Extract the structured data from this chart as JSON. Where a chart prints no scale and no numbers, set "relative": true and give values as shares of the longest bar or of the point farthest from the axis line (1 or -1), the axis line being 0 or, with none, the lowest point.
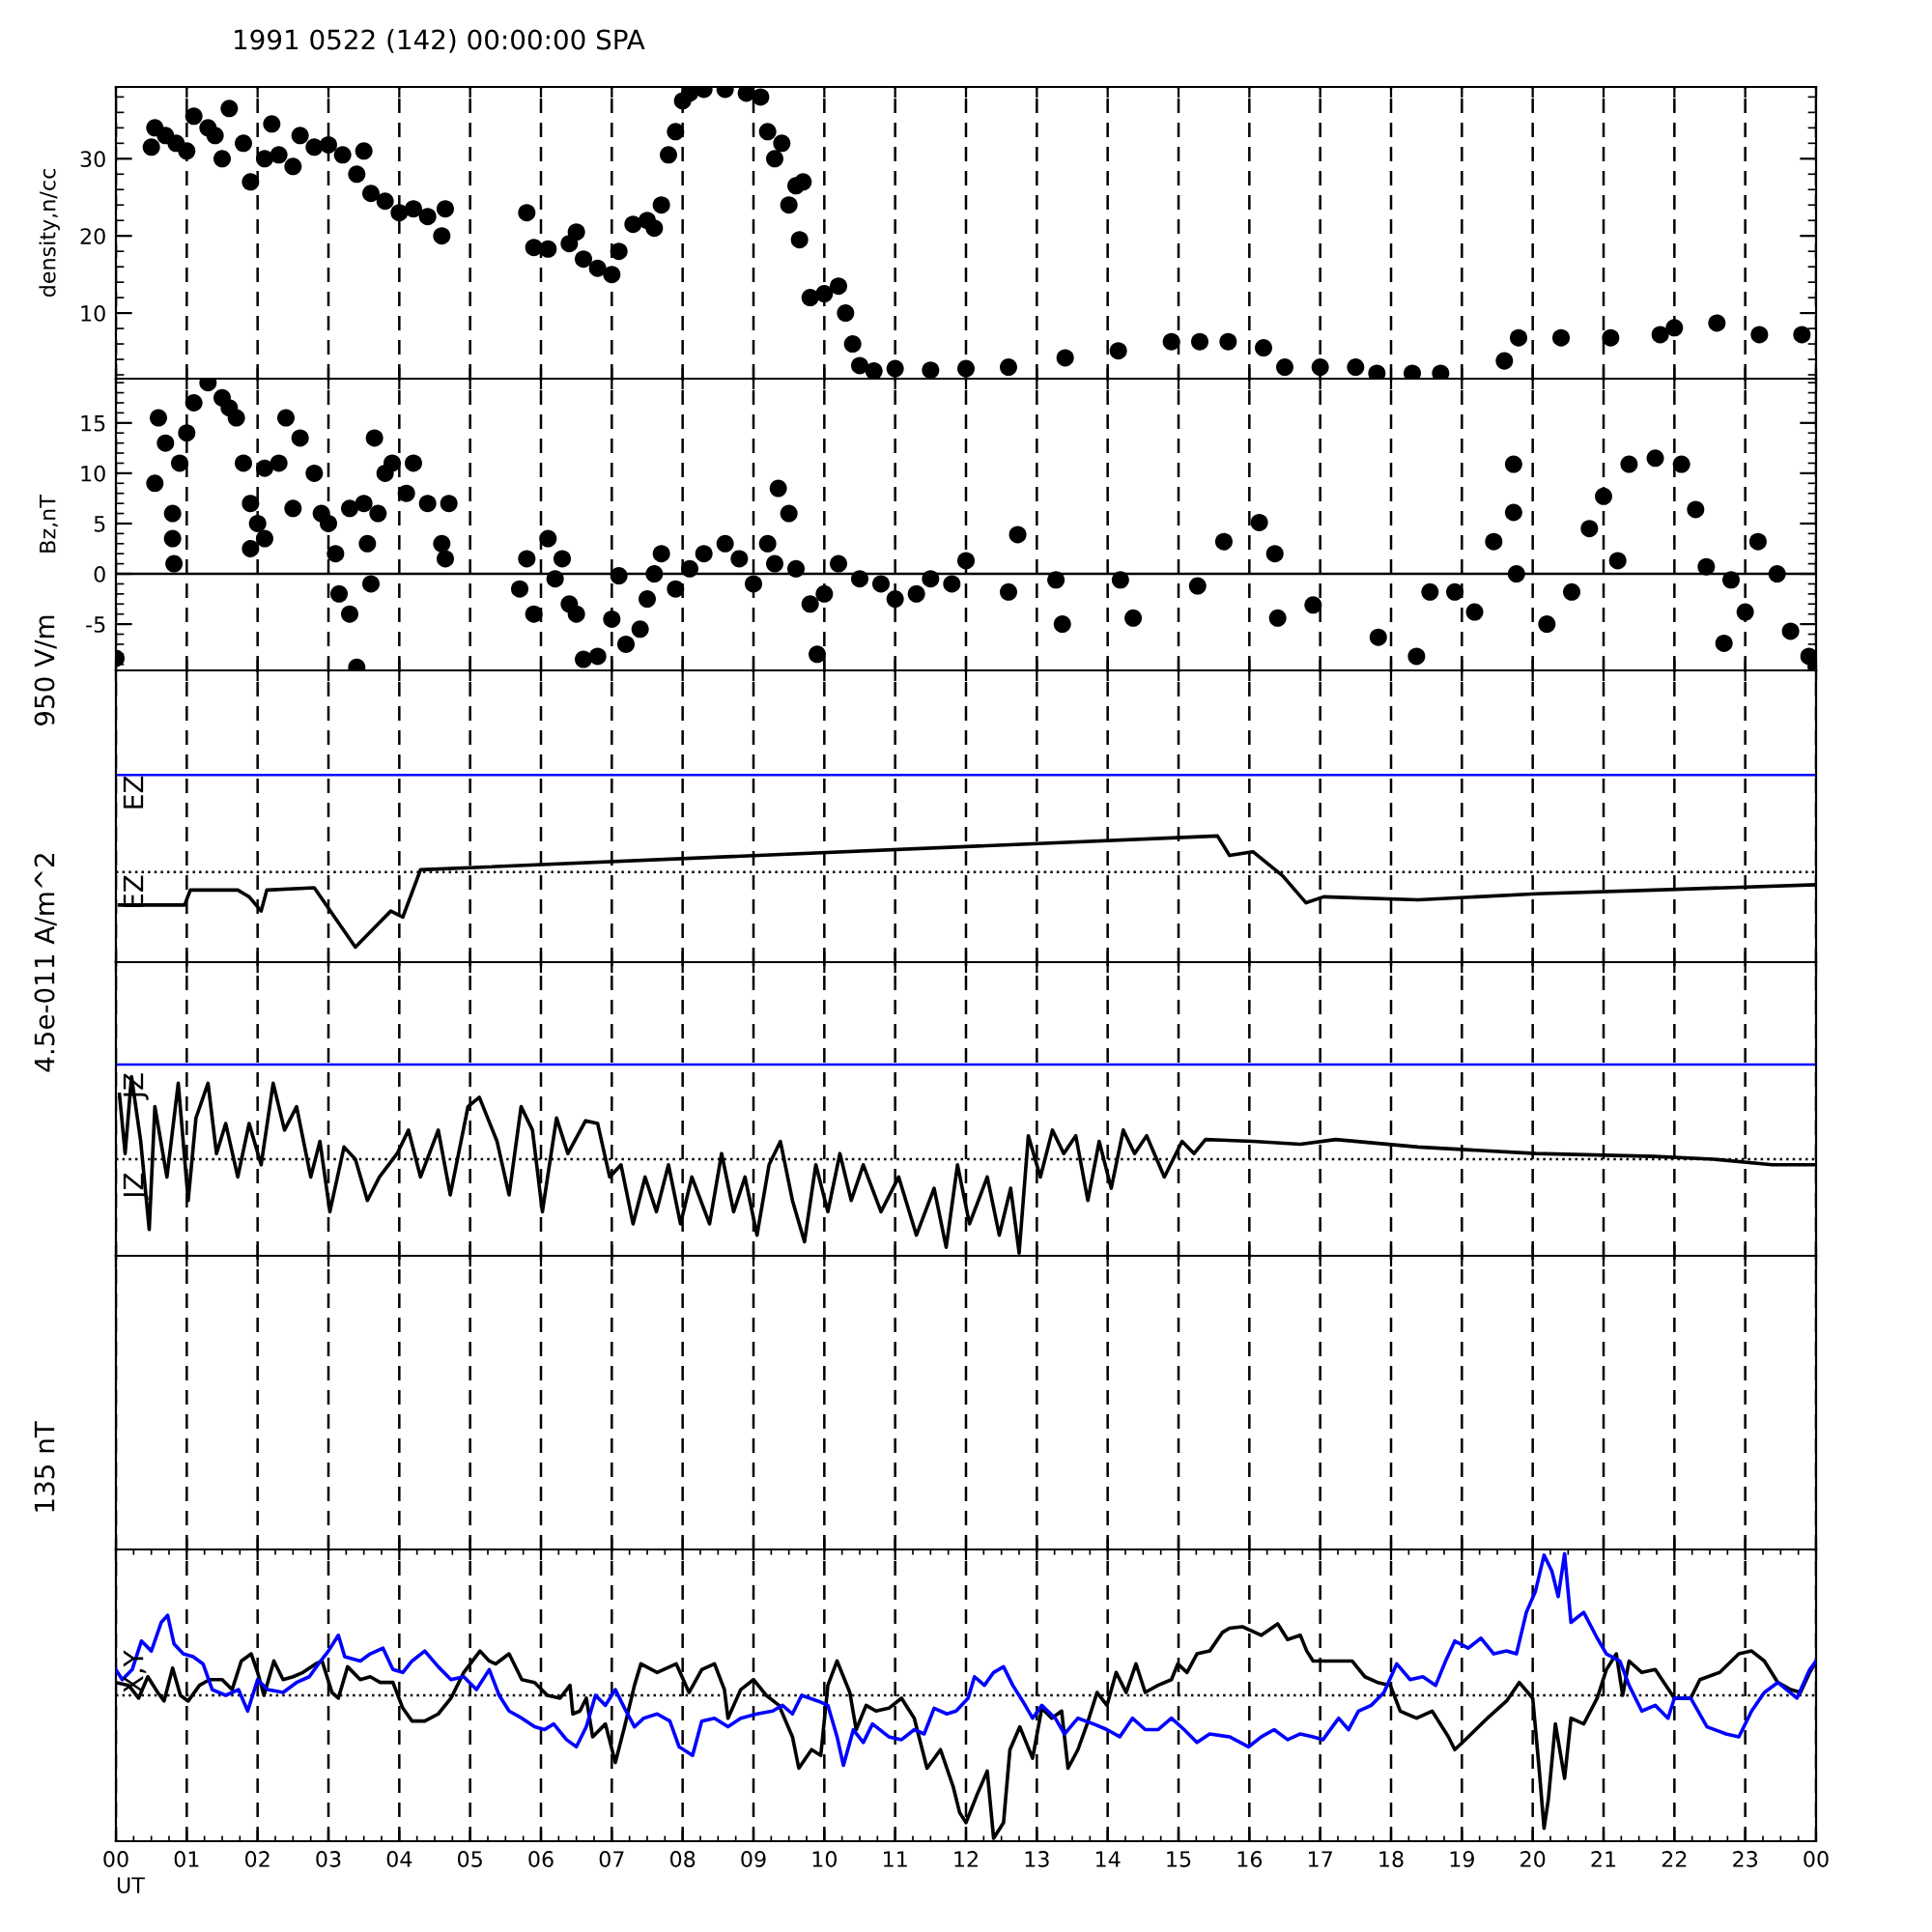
{
  "chart_data": [
    {
      "type": "scatter",
      "title": "1991 0522 (142) 00:00:00 SPA",
      "ylabel": "density,n/cc",
      "marker": "circle",
      "grid": "x",
      "tick_labels": "y",
      "xlim": [
        0,
        24
      ],
      "xticks": [
        0,
        1,
        2,
        3,
        4,
        5,
        6,
        7,
        8,
        9,
        10,
        11,
        12,
        13,
        14,
        15,
        16,
        17,
        18,
        19,
        20,
        21,
        22,
        23,
        24
      ],
      "ylim": [
        1.5,
        39.3
      ],
      "yticks": [
        10,
        20,
        30
      ],
      "series": [
        {
          "color": "#000000",
          "x": [
            0.5,
            0.55,
            0.7,
            0.85,
            1.0,
            1.1,
            1.3,
            1.4,
            1.5,
            1.6,
            1.8,
            1.9,
            2.1,
            2.2,
            2.3,
            2.5,
            2.6,
            2.8,
            3.0,
            3.2,
            3.4,
            3.5,
            3.6,
            3.8,
            4.0,
            4.2,
            4.4,
            4.6,
            4.65,
            5.8,
            5.9,
            6.1,
            6.4,
            6.5,
            6.6,
            6.8,
            7.0,
            7.1,
            7.3,
            7.5,
            7.6,
            7.7,
            7.8,
            7.9,
            8.0,
            8.1,
            8.3,
            8.6,
            8.9,
            9.1,
            9.2,
            9.3,
            9.4,
            9.5,
            9.6,
            9.65,
            9.7,
            9.8,
            10.0,
            10.2,
            10.3,
            10.4,
            10.5,
            10.7,
            11.0,
            11.5,
            12.0,
            12.6,
            13.4,
            14.15,
            14.9,
            15.3,
            15.7,
            16.2,
            16.5,
            17.0,
            17.5,
            17.8,
            18.3,
            18.7,
            19.6,
            19.8,
            20.4,
            21.1,
            21.8,
            22.0,
            22.6,
            23.2,
            23.8
          ],
          "values": [
            31.5,
            34,
            33,
            32,
            31,
            35.5,
            34,
            33,
            30,
            36.5,
            32,
            27,
            30,
            34.5,
            30.5,
            29,
            33,
            31.5,
            31.8,
            30.5,
            28,
            31,
            25.5,
            24.5,
            23,
            23.5,
            22.5,
            20,
            23.5,
            23,
            18.5,
            18.3,
            19,
            20.5,
            17,
            15.8,
            15,
            18,
            21.5,
            22,
            21,
            24,
            30.5,
            33.5,
            37.5,
            38.5,
            39,
            39,
            38.5,
            38,
            33.5,
            30,
            32,
            24,
            26.5,
            19.5,
            27,
            12,
            12.5,
            13.5,
            10,
            6,
            3.2,
            2.5,
            2.8,
            2.6,
            2.8,
            3.0,
            4.2,
            5.1,
            6.3,
            6.3,
            6.3,
            5.5,
            3.0,
            3.0,
            3.0,
            2.2,
            2.2,
            2.2,
            3.8,
            6.8,
            6.8,
            6.8,
            7.2,
            8.1,
            8.7,
            7.2,
            7.2
          ]
        }
      ]
    },
    {
      "type": "scatter",
      "ylabel": "Bz,nT",
      "marker": "circle",
      "grid": "x",
      "tick_labels": "y",
      "xlim": [
        0,
        24
      ],
      "xticks": [
        0,
        1,
        2,
        3,
        4,
        5,
        6,
        7,
        8,
        9,
        10,
        11,
        12,
        13,
        14,
        15,
        16,
        17,
        18,
        19,
        20,
        21,
        22,
        23,
        24
      ],
      "ylim": [
        -9.6,
        19.4
      ],
      "yticks": [
        -5,
        0,
        5,
        10,
        15
      ],
      "ref_lines": [
        {
          "axis": "y",
          "value": 0,
          "color": "#000000",
          "line_style": "solid"
        }
      ],
      "series": [
        {
          "color": "#000000",
          "x": [
            0.0,
            0.55,
            0.6,
            0.7,
            0.8,
            0.8,
            0.82,
            0.9,
            1.0,
            1.1,
            1.3,
            1.5,
            1.6,
            1.7,
            1.8,
            1.9,
            1.9,
            2.0,
            2.1,
            2.1,
            2.3,
            2.4,
            2.5,
            2.6,
            2.8,
            2.9,
            3.0,
            3.1,
            3.15,
            3.3,
            3.3,
            3.4,
            3.5,
            3.55,
            3.6,
            3.65,
            3.7,
            3.8,
            3.9,
            4.1,
            4.2,
            4.4,
            4.6,
            4.65,
            4.7,
            5.7,
            5.8,
            5.9,
            6.1,
            6.2,
            6.3,
            6.4,
            6.5,
            6.6,
            6.8,
            7.0,
            7.1,
            7.2,
            7.4,
            7.5,
            7.6,
            7.7,
            7.9,
            8.1,
            8.3,
            8.6,
            8.8,
            9.0,
            9.2,
            9.3,
            9.35,
            9.5,
            9.6,
            9.8,
            9.9,
            10.0,
            10.2,
            10.5,
            10.8,
            11.0,
            11.3,
            11.5,
            11.8,
            12.0,
            12.6,
            12.73,
            13.27,
            13.36,
            14.18,
            14.36,
            15.27,
            15.64,
            16.14,
            16.36,
            16.4,
            16.9,
            17.82,
            18.36,
            18.55,
            18.9,
            19.18,
            19.45,
            19.73,
            19.73,
            19.77,
            20.2,
            20.55,
            20.8,
            21.0,
            21.2,
            21.36,
            21.73,
            22.1,
            22.3,
            22.45,
            22.7,
            22.8,
            23.0,
            23.18,
            23.45,
            23.64,
            23.9,
            24.0
          ],
          "values": [
            -8.4,
            9,
            15.5,
            13,
            6,
            3.5,
            1,
            11,
            14,
            17,
            19,
            17.5,
            16.5,
            15.5,
            11,
            2.5,
            7,
            5,
            10.5,
            3.5,
            11,
            15.5,
            6.5,
            13.5,
            10,
            6,
            5,
            2,
            -2,
            6.5,
            -4,
            -9.3,
            7,
            3,
            -1,
            13.5,
            6,
            10,
            11,
            8,
            11,
            7,
            3,
            1.5,
            7,
            -1.5,
            1.5,
            -4,
            3.5,
            -0.5,
            1.5,
            -3,
            -4,
            -8.5,
            -8.2,
            -4.5,
            -0.2,
            -7,
            -5.5,
            -2.5,
            0,
            2,
            -1.5,
            0.5,
            2,
            3,
            1.5,
            -1,
            3,
            1,
            8.5,
            6,
            0.5,
            -3,
            -8,
            -2,
            1,
            -0.5,
            -1,
            -2.5,
            -2,
            -0.5,
            -1.0,
            1.3,
            -1.8,
            3.9,
            -0.6,
            -5,
            -0.6,
            -4.4,
            -1.2,
            3.2,
            5.1,
            2,
            -4.4,
            -3.1,
            -6.3,
            -8.2,
            -1.8,
            -1.8,
            -3.8,
            3.2,
            10.9,
            6.1,
            0,
            -5,
            -1.8,
            4.5,
            7.7,
            1.3,
            10.9,
            11.5,
            10.9,
            6.4,
            0.7,
            -6.9,
            -0.6,
            -3.8,
            3.2,
            0,
            -5.7,
            -8.2,
            -9.2
          ]
        }
      ]
    },
    {
      "type": "line",
      "relative": true,
      "ylabel": "950 V/m",
      "annotations": [
        "EZ",
        "EZ"
      ],
      "grid": "x",
      "tick_labels": false,
      "xlim": [
        0,
        24
      ],
      "xticks": [
        0,
        1,
        2,
        3,
        4,
        5,
        6,
        7,
        8,
        9,
        10,
        11,
        12,
        13,
        14,
        15,
        16,
        17,
        18,
        19,
        20,
        21,
        22,
        23,
        24
      ],
      "ref_lines": [
        {
          "axis": "y",
          "value": 0,
          "color": "#000000",
          "line_style": "dotted"
        },
        {
          "axis": "y",
          "value": 1.29,
          "color": "#0000ff",
          "line_style": "solid"
        }
      ],
      "series": [
        {
          "color": "#000000",
          "x": [
            0.05,
            0.97,
            1.05,
            1.72,
            1.88,
            2.05,
            2.13,
            2.8,
            2.97,
            3.38,
            3.63,
            3.88,
            4.05,
            4.3,
            15.55,
            15.72,
            16.05,
            16.47,
            16.8,
            17.05,
            18.38,
            20.05,
            21.72,
            24
          ],
          "values": [
            -0.44,
            -0.44,
            -0.24,
            -0.24,
            -0.33,
            -0.52,
            -0.24,
            -0.21,
            -0.44,
            -1,
            -0.76,
            -0.52,
            -0.6,
            0.03,
            0.48,
            0.22,
            0.27,
            -0.05,
            -0.41,
            -0.33,
            -0.37,
            -0.29,
            -0.24,
            -0.17
          ]
        }
      ]
    },
    {
      "type": "line",
      "relative": true,
      "ylabel": "4.5e-011 A/m^2",
      "annotations": [
        "JZ",
        "JZ"
      ],
      "grid": "x",
      "tick_labels": false,
      "xlim": [
        0,
        24
      ],
      "xticks": [
        0,
        1,
        2,
        3,
        4,
        5,
        6,
        7,
        8,
        9,
        10,
        11,
        12,
        13,
        14,
        15,
        16,
        17,
        18,
        19,
        20,
        21,
        22,
        23,
        24
      ],
      "ref_lines": [
        {
          "axis": "y",
          "value": 0,
          "color": "#000000",
          "line_style": "dotted"
        },
        {
          "axis": "y",
          "value": 1.01,
          "color": "#0000ff",
          "line_style": "solid"
        }
      ],
      "series": [
        {
          "color": "#000000",
          "x": [
            0.05,
            0.13,
            0.22,
            0.35,
            0.47,
            0.55,
            0.72,
            0.88,
            1.02,
            1.13,
            1.3,
            1.42,
            1.55,
            1.72,
            1.88,
            2.05,
            2.22,
            2.38,
            2.55,
            2.75,
            2.88,
            3.02,
            3.22,
            3.38,
            3.55,
            3.72,
            3.97,
            4.13,
            4.3,
            4.55,
            4.72,
            4.97,
            5.13,
            5.38,
            5.55,
            5.72,
            5.88,
            6.02,
            6.22,
            6.38,
            6.63,
            6.8,
            6.97,
            7.13,
            7.3,
            7.47,
            7.63,
            7.8,
            7.97,
            8.13,
            8.38,
            8.55,
            8.72,
            8.88,
            9.05,
            9.22,
            9.38,
            9.55,
            9.72,
            9.88,
            10.05,
            10.22,
            10.38,
            10.55,
            10.8,
            11.05,
            11.3,
            11.55,
            11.72,
            11.88,
            12.05,
            12.3,
            12.47,
            12.63,
            12.75,
            12.88,
            13.05,
            13.22,
            13.38,
            13.55,
            13.72,
            13.88,
            14.05,
            14.22,
            14.38,
            14.55,
            14.8,
            15.05,
            15.22,
            15.38,
            16.05,
            16.72,
            17.22,
            18.38,
            20.05,
            21.72,
            22.55,
            23.38,
            24
          ],
          "values": [
            0.69,
            0.06,
            0.88,
            0.19,
            -0.75,
            0.56,
            -0.19,
            0.81,
            -0.44,
            0.44,
            0.81,
            0.06,
            0.38,
            -0.19,
            0.38,
            -0.06,
            0.81,
            0.31,
            0.56,
            -0.19,
            0.19,
            -0.56,
            0.13,
            0,
            -0.44,
            -0.19,
            0.06,
            0.31,
            -0.19,
            0.31,
            -0.38,
            0.56,
            0.66,
            0.19,
            -0.38,
            0.56,
            0.31,
            -0.56,
            0.44,
            0.06,
            0.41,
            0.38,
            -0.19,
            -0.06,
            -0.69,
            -0.19,
            -0.56,
            -0.06,
            -0.69,
            -0.19,
            -0.69,
            0.06,
            -0.56,
            -0.19,
            -0.81,
            -0.06,
            0.19,
            -0.44,
            -0.88,
            -0.06,
            -0.56,
            0.06,
            -0.44,
            -0.06,
            -0.56,
            -0.19,
            -0.81,
            -0.31,
            -0.94,
            -0.06,
            -0.69,
            -0.19,
            -0.81,
            -0.31,
            -1,
            0.25,
            -0.19,
            0.31,
            0.06,
            0.25,
            -0.44,
            0.19,
            -0.31,
            0.31,
            0.06,
            0.25,
            -0.19,
            0.19,
            0.06,
            0.21,
            0.19,
            0.16,
            0.21,
            0.13,
            0.06,
            0.03,
            0,
            -0.06,
            -0.06
          ]
        }
      ]
    },
    {
      "type": "other"
    },
    {
      "type": "line",
      "relative": true,
      "ylabel": "135 nT",
      "xlabel": "UT",
      "annotations": [
        "X,Y"
      ],
      "grid": "x",
      "tick_labels": "x",
      "xlim": [
        0,
        24
      ],
      "xticks": [
        {
          "value": 0,
          "label": "00"
        },
        {
          "value": 1,
          "label": "01"
        },
        {
          "value": 2,
          "label": "02"
        },
        {
          "value": 3,
          "label": "03"
        },
        {
          "value": 4,
          "label": "04"
        },
        {
          "value": 5,
          "label": "05"
        },
        {
          "value": 6,
          "label": "06"
        },
        {
          "value": 7,
          "label": "07"
        },
        {
          "value": 8,
          "label": "08"
        },
        {
          "value": 9,
          "label": "09"
        },
        {
          "value": 10,
          "label": "10"
        },
        {
          "value": 11,
          "label": "11"
        },
        {
          "value": 12,
          "label": "12"
        },
        {
          "value": 13,
          "label": "13"
        },
        {
          "value": 14,
          "label": "14"
        },
        {
          "value": 15,
          "label": "15"
        },
        {
          "value": 16,
          "label": "16"
        },
        {
          "value": 17,
          "label": "17"
        },
        {
          "value": 18,
          "label": "18"
        },
        {
          "value": 19,
          "label": "19"
        },
        {
          "value": 20,
          "label": "20"
        },
        {
          "value": 21,
          "label": "21"
        },
        {
          "value": 22,
          "label": "22"
        },
        {
          "value": 23,
          "label": "23"
        },
        {
          "value": 24,
          "label": "00"
        }
      ],
      "ref_lines": [
        {
          "axis": "y",
          "value": 0,
          "color": "#000000",
          "line_style": "dotted"
        }
      ],
      "series": [
        {
          "color": "#000000",
          "x": [
            0,
            0.18,
            0.32,
            0.45,
            0.59,
            0.68,
            0.8,
            0.91,
            1.02,
            1.18,
            1.32,
            1.5,
            1.64,
            1.77,
            1.91,
            2.0,
            2.09,
            2.23,
            2.36,
            2.5,
            2.64,
            2.82,
            2.91,
            3.05,
            3.14,
            3.27,
            3.45,
            3.59,
            3.73,
            3.91,
            4.05,
            4.18,
            4.36,
            4.55,
            4.73,
            4.91,
            5.14,
            5.27,
            5.36,
            5.55,
            5.73,
            5.91,
            6.09,
            6.27,
            6.41,
            6.45,
            6.55,
            6.64,
            6.73,
            6.91,
            7.05,
            7.18,
            7.32,
            7.41,
            7.64,
            7.91,
            8.09,
            8.27,
            8.45,
            8.59,
            8.64,
            8.82,
            9.0,
            9.18,
            9.36,
            9.55,
            9.64,
            9.82,
            9.95,
            10.05,
            10.18,
            10.36,
            10.45,
            10.59,
            10.73,
            10.91,
            11.09,
            11.27,
            11.45,
            11.64,
            11.82,
            11.91,
            12.0,
            12.16,
            12.3,
            12.39,
            12.53,
            12.62,
            12.76,
            12.94,
            13.07,
            13.21,
            13.35,
            13.44,
            13.58,
            13.71,
            13.85,
            13.99,
            14.12,
            14.26,
            14.4,
            14.53,
            14.71,
            14.9,
            14.99,
            15.12,
            15.26,
            15.44,
            15.62,
            15.72,
            15.9,
            16.17,
            16.4,
            16.54,
            16.72,
            16.81,
            16.9,
            17.04,
            17.26,
            17.45,
            17.63,
            17.81,
            17.99,
            18.13,
            18.36,
            18.58,
            18.81,
            18.9,
            19.09,
            19.36,
            19.63,
            19.81,
            20.0,
            20.09,
            20.16,
            20.22,
            20.32,
            20.45,
            20.54,
            20.72,
            20.91,
            21.04,
            21.18,
            21.27,
            21.36,
            21.54,
            21.73,
            22.0,
            22.23,
            22.36,
            22.64,
            22.91,
            23.09,
            23.27,
            23.46,
            23.64,
            23.78,
            23.91,
            24.0
          ],
          "values": [
            0.09,
            0.07,
            -0.02,
            0.13,
            0.02,
            -0.04,
            0.19,
            0,
            -0.04,
            0.07,
            0.11,
            0.11,
            0.04,
            0.24,
            0.29,
            0.16,
            0,
            0.24,
            0.11,
            0.13,
            0.16,
            0.22,
            0.24,
            0.02,
            -0.02,
            0.2,
            0.11,
            0.13,
            0.09,
            0.09,
            -0.09,
            -0.18,
            -0.18,
            -0.13,
            -0.02,
            0.16,
            0.31,
            0.24,
            0.22,
            0.29,
            0.11,
            0.09,
            0,
            -0.02,
            0.07,
            -0.13,
            -0.11,
            -0.02,
            -0.29,
            -0.2,
            -0.47,
            -0.22,
            0.07,
            0.22,
            0.16,
            0.22,
            0.02,
            0.18,
            0.22,
            0.04,
            -0.16,
            0.04,
            0.11,
            0,
            -0.07,
            -0.29,
            -0.51,
            -0.38,
            -0.42,
            0.07,
            0.24,
            0.02,
            -0.24,
            -0.07,
            -0.11,
            -0.09,
            -0.02,
            -0.16,
            -0.51,
            -0.38,
            -0.64,
            -0.82,
            -0.89,
            -0.69,
            -0.53,
            -1.0,
            -0.89,
            -0.38,
            -0.22,
            -0.44,
            -0.09,
            -0.16,
            -0.11,
            -0.51,
            -0.38,
            -0.2,
            0.02,
            -0.07,
            0.16,
            0.02,
            0.22,
            0.02,
            0.07,
            0.11,
            0.22,
            0.16,
            0.29,
            0.31,
            0.44,
            0.47,
            0.48,
            0.42,
            0.5,
            0.39,
            0.42,
            0.31,
            0.24,
            0.24,
            0.24,
            0.24,
            0.13,
            0.09,
            0.07,
            -0.11,
            -0.16,
            -0.11,
            -0.29,
            -0.38,
            -0.29,
            -0.16,
            -0.04,
            0.09,
            -0.02,
            -0.51,
            -0.93,
            -0.73,
            -0.2,
            -0.58,
            -0.16,
            -0.2,
            -0.02,
            0.18,
            0.29,
            0,
            0.24,
            0.16,
            0.18,
            -0.02,
            -0.02,
            0.11,
            0.16,
            0.29,
            0.31,
            0.24,
            0.09,
            0.04,
            0.02,
            0.16,
            0.24
          ]
        },
        {
          "color": "#0000ff",
          "x": [
            0,
            0.09,
            0.23,
            0.36,
            0.5,
            0.64,
            0.73,
            0.82,
            0.95,
            1.09,
            1.23,
            1.36,
            1.55,
            1.73,
            1.86,
            2.0,
            2.14,
            2.36,
            2.55,
            2.73,
            2.86,
            3.0,
            3.14,
            3.23,
            3.45,
            3.59,
            3.77,
            3.91,
            4.05,
            4.18,
            4.36,
            4.55,
            4.73,
            4.91,
            5.09,
            5.27,
            5.41,
            5.55,
            5.73,
            5.91,
            6.05,
            6.18,
            6.36,
            6.5,
            6.64,
            6.77,
            6.91,
            7.05,
            7.18,
            7.32,
            7.45,
            7.64,
            7.82,
            7.95,
            8.14,
            8.27,
            8.45,
            8.64,
            8.82,
            9.05,
            9.27,
            9.41,
            9.55,
            9.68,
            9.91,
            10.05,
            10.18,
            10.27,
            10.41,
            10.55,
            10.68,
            10.91,
            11.09,
            11.27,
            11.41,
            11.55,
            11.73,
            11.86,
            12.03,
            12.12,
            12.26,
            12.39,
            12.53,
            12.66,
            12.8,
            12.94,
            13.07,
            13.26,
            13.39,
            13.58,
            13.8,
            13.99,
            14.17,
            14.35,
            14.53,
            14.71,
            14.9,
            15.08,
            15.26,
            15.44,
            15.72,
            15.99,
            16.17,
            16.35,
            16.54,
            16.72,
            16.9,
            17.04,
            17.26,
            17.4,
            17.54,
            17.72,
            17.9,
            18.08,
            18.27,
            18.45,
            18.63,
            18.77,
            18.9,
            19.09,
            19.27,
            19.45,
            19.63,
            19.77,
            19.91,
            20.04,
            20.16,
            20.27,
            20.36,
            20.45,
            20.54,
            20.72,
            20.91,
            21.04,
            21.23,
            21.36,
            21.54,
            21.73,
            21.91,
            22.0,
            22.23,
            22.46,
            22.73,
            22.91,
            23.09,
            23.27,
            23.46,
            23.73,
            23.91,
            24.0
          ],
          "values": [
            0.18,
            0.11,
            0.18,
            0.38,
            0.31,
            0.51,
            0.56,
            0.36,
            0.29,
            0.27,
            0.22,
            0.04,
            0,
            0.04,
            -0.11,
            0.11,
            0.04,
            0.02,
            0.09,
            0.13,
            0.22,
            0.31,
            0.42,
            0.27,
            0.24,
            0.29,
            0.33,
            0.18,
            0.16,
            0.24,
            0.31,
            0.2,
            0.11,
            0.13,
            0.04,
            0.18,
            0,
            -0.11,
            -0.16,
            -0.22,
            -0.24,
            -0.2,
            -0.31,
            -0.36,
            -0.22,
            0,
            -0.07,
            0.04,
            -0.09,
            -0.22,
            -0.16,
            -0.13,
            -0.18,
            -0.36,
            -0.42,
            -0.18,
            -0.16,
            -0.22,
            -0.16,
            -0.13,
            -0.11,
            -0.07,
            -0.13,
            0,
            -0.04,
            -0.07,
            -0.29,
            -0.49,
            -0.24,
            -0.33,
            -0.2,
            -0.29,
            -0.31,
            -0.24,
            -0.27,
            -0.09,
            -0.13,
            -0.11,
            -0.02,
            0.13,
            0.07,
            0.16,
            0.2,
            0.07,
            -0.04,
            -0.16,
            -0.07,
            -0.16,
            -0.27,
            -0.16,
            -0.2,
            -0.24,
            -0.29,
            -0.16,
            -0.24,
            -0.24,
            -0.16,
            -0.24,
            -0.33,
            -0.27,
            -0.29,
            -0.36,
            -0.29,
            -0.24,
            -0.31,
            -0.27,
            -0.29,
            -0.31,
            -0.16,
            -0.24,
            -0.11,
            -0.07,
            0.02,
            0.22,
            0.11,
            0.13,
            0.07,
            0.24,
            0.38,
            0.33,
            0.4,
            0.29,
            0.31,
            0.29,
            0.58,
            0.73,
            0.98,
            0.87,
            0.69,
            0.99,
            0.51,
            0.58,
            0.4,
            0.29,
            0.24,
            0.07,
            -0.11,
            -0.07,
            -0.16,
            -0.02,
            -0.02,
            -0.22,
            -0.27,
            -0.29,
            -0.11,
            0.02,
            0.09,
            -0.02,
            0.18,
            0.24
          ]
        }
      ]
    }
  ]
}
